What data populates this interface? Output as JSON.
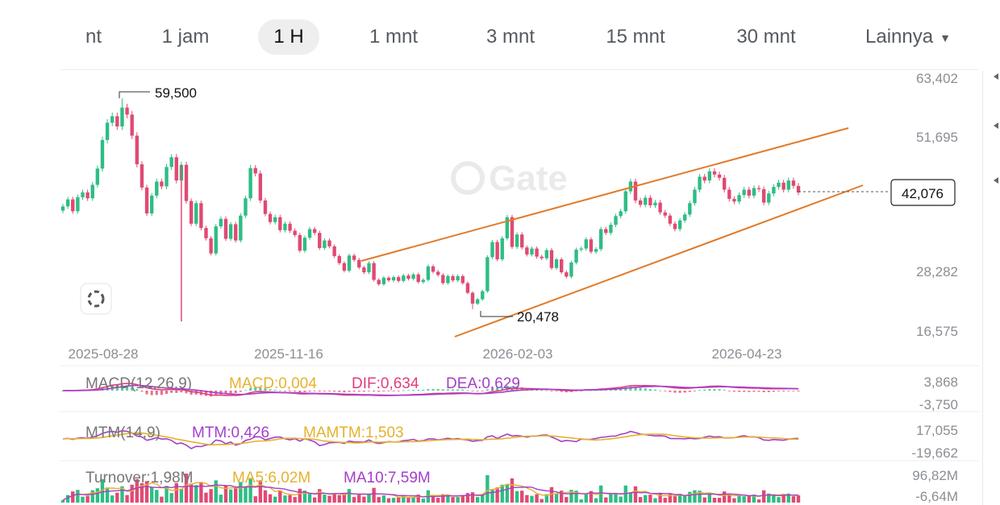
{
  "tabs": [
    {
      "label": "nt"
    },
    {
      "label": "1 jam"
    },
    {
      "label": "1 H",
      "active": true
    },
    {
      "label": "1 mnt"
    },
    {
      "label": "3 mnt"
    },
    {
      "label": "15 mnt"
    },
    {
      "label": "30 mnt"
    },
    {
      "label": "Lainnya",
      "caret": "▼"
    }
  ],
  "chart_data": {
    "type": "candlestick",
    "watermark": "Gate",
    "colors": {
      "up": "#2ebd85",
      "down": "#e04a72",
      "trendline": "#e07b2a",
      "macd": "#e5b22e",
      "dif": "#e33b7c",
      "dea": "#a43fc9",
      "mtm": "#a43fc9",
      "mamtm": "#e5b22e",
      "ma5": "#e5b22e",
      "ma10": "#a43fc9"
    },
    "price_axis": {
      "ticks": [
        "63,402",
        "51,695",
        "28,282",
        "16,575"
      ],
      "ylim": [
        16575,
        63402
      ]
    },
    "date_axis": [
      "2025-08-28",
      "2025-11-16",
      "2026-02-03",
      "2026-04-23"
    ],
    "annotations": {
      "high_label": "59,500",
      "high_value": 59500,
      "low_label": "20,478",
      "low_value": 20478
    },
    "current_price": {
      "label": "42,076",
      "value": 42076
    },
    "closes": [
      39500,
      40800,
      38600,
      41200,
      42100,
      41000,
      43500,
      46500,
      51800,
      55000,
      56200,
      54300,
      57800,
      56500,
      52600,
      47300,
      43000,
      38200,
      41500,
      44100,
      43200,
      46800,
      48600,
      44300,
      47200,
      40500,
      36300,
      40100,
      35500,
      33600,
      30800,
      35800,
      37200,
      33500,
      36200,
      33200,
      37800,
      41000,
      46600,
      45600,
      40600,
      38100,
      36600,
      37500,
      35100,
      36300,
      35000,
      34200,
      31300,
      33700,
      35300,
      34600,
      31800,
      33200,
      32100,
      30300,
      29000,
      27600,
      30400,
      29600,
      28200,
      27300,
      29000,
      25900,
      25100,
      26300,
      25800,
      26400,
      25700,
      26700,
      26100,
      26900,
      25500,
      25900,
      28400,
      27400,
      26800,
      25300,
      26600,
      25800,
      26600,
      25300,
      23500,
      21500,
      22300,
      23800,
      30100,
      32900,
      29700,
      33600,
      37500,
      32000,
      34300,
      31900,
      30600,
      31700,
      30200,
      29900,
      31400,
      28100,
      29700,
      27300,
      26500,
      29100,
      31500,
      31700,
      33400,
      31100,
      31600,
      35300,
      34600,
      36100,
      37700,
      38600,
      42300,
      44100,
      40600,
      39800,
      41100,
      39700,
      40200,
      38400,
      37800,
      36300,
      35300,
      36900,
      38000,
      40100,
      42600,
      45000,
      44300,
      46000,
      45400,
      44800,
      42600,
      40900,
      40400,
      41600,
      42600,
      41500,
      42900,
      42700,
      40200,
      41900,
      43100,
      43900,
      42600,
      44300,
      43300,
      42076
    ],
    "macd": {
      "legend": "MACD(12,26,9)",
      "macd_label": "MACD:0,004",
      "dif_label": "DIF:0,634",
      "dea_label": "DEA:0,629",
      "ticks": [
        "3,868",
        "-3,750"
      ]
    },
    "mtm": {
      "legend": "MTM(14,9)",
      "mtm_label": "MTM:0,426",
      "mamtm_label": "MAMTM:1,503",
      "ticks": [
        "17,055",
        "-19,662"
      ]
    },
    "turnover": {
      "legend": "Turnover:1,98M",
      "ma5_label": "MA5:6,02M",
      "ma10_label": "MA10:7,59M",
      "ticks": [
        "96,82M",
        "-6,64M"
      ]
    }
  }
}
